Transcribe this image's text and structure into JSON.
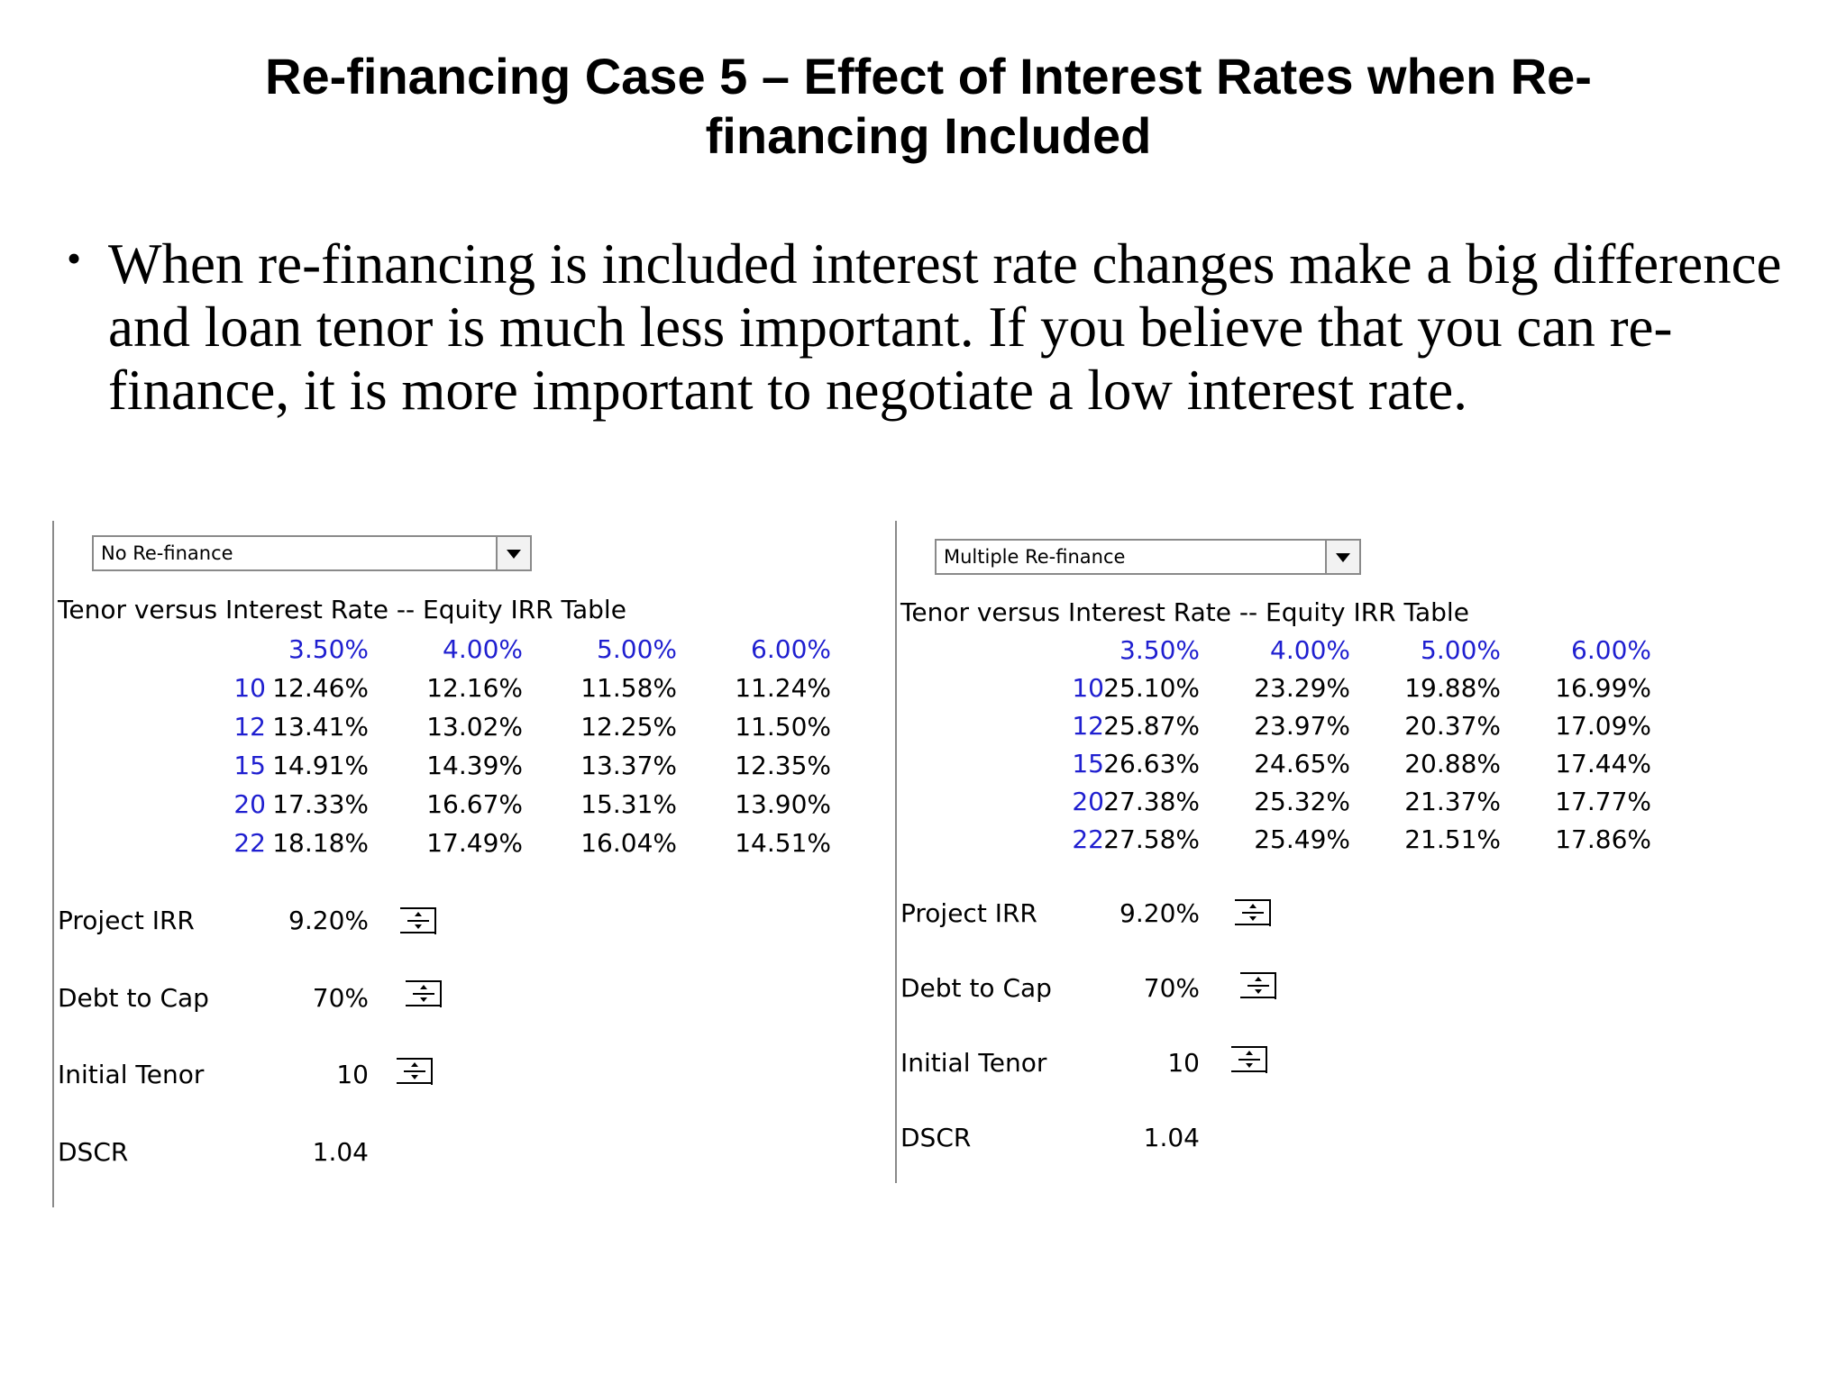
{
  "slide": {
    "title_line1": "Re-financing Case 5 – Effect of Interest Rates when Re-",
    "title_line2": "financing Included",
    "bullet": "When re-financing is included interest rate changes make a big difference and loan tenor is much less important. If you believe that you can re-finance, it is more important to negotiate a low interest rate."
  },
  "left": {
    "dropdown": "No Re-finance",
    "table_title": "Tenor versus Interest Rate -- Equity IRR Table",
    "rates": [
      "3.50%",
      "4.00%",
      "5.00%",
      "6.00%"
    ],
    "rows": [
      {
        "tenor": "10",
        "values": [
          "12.46%",
          "12.16%",
          "11.58%",
          "11.24%"
        ]
      },
      {
        "tenor": "12",
        "values": [
          "13.41%",
          "13.02%",
          "12.25%",
          "11.50%"
        ]
      },
      {
        "tenor": "15",
        "values": [
          "14.91%",
          "14.39%",
          "13.37%",
          "12.35%"
        ]
      },
      {
        "tenor": "20",
        "values": [
          "17.33%",
          "16.67%",
          "15.31%",
          "13.90%"
        ]
      },
      {
        "tenor": "22",
        "values": [
          "18.18%",
          "17.49%",
          "16.04%",
          "14.51%"
        ]
      }
    ],
    "params": [
      {
        "label": "Project IRR",
        "value": "9.20%"
      },
      {
        "label": "Debt to Cap",
        "value": "70%"
      },
      {
        "label": "Initial Tenor",
        "value": "10"
      },
      {
        "label": "DSCR",
        "value": "1.04"
      }
    ]
  },
  "right": {
    "dropdown": "Multiple Re-finance",
    "table_title": "Tenor versus Interest Rate -- Equity IRR Table",
    "rates": [
      "3.50%",
      "4.00%",
      "5.00%",
      "6.00%"
    ],
    "rows": [
      {
        "tenor": "10",
        "values": [
          "25.10%",
          "23.29%",
          "19.88%",
          "16.99%"
        ]
      },
      {
        "tenor": "12",
        "values": [
          "25.87%",
          "23.97%",
          "20.37%",
          "17.09%"
        ]
      },
      {
        "tenor": "15",
        "values": [
          "26.63%",
          "24.65%",
          "20.88%",
          "17.44%"
        ]
      },
      {
        "tenor": "20",
        "values": [
          "27.38%",
          "25.32%",
          "21.37%",
          "17.77%"
        ]
      },
      {
        "tenor": "22",
        "values": [
          "27.58%",
          "25.49%",
          "21.51%",
          "17.86%"
        ]
      }
    ],
    "params": [
      {
        "label": "Project IRR",
        "value": "9.20%"
      },
      {
        "label": "Debt to Cap",
        "value": "70%"
      },
      {
        "label": "Initial Tenor",
        "value": "10"
      },
      {
        "label": "DSCR",
        "value": "1.04"
      }
    ]
  }
}
